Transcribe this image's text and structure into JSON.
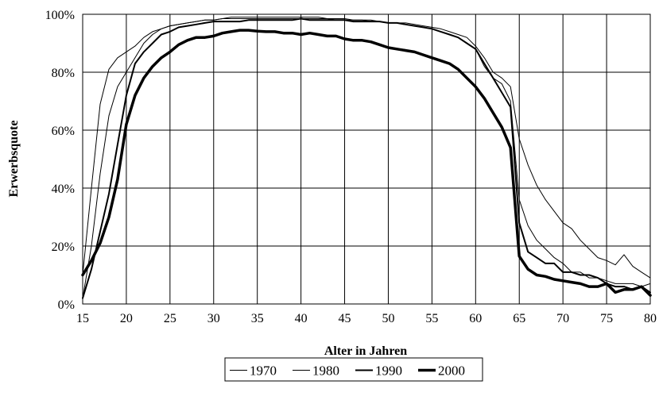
{
  "chart_data": {
    "type": "line",
    "title": "",
    "xlabel": "Alter in Jahren",
    "ylabel": "Erwerbsquote",
    "xlim": [
      15,
      80
    ],
    "ylim": [
      0,
      100
    ],
    "x_ticks": [
      "15",
      "20",
      "25",
      "30",
      "35",
      "40",
      "45",
      "50",
      "55",
      "60",
      "65",
      "70",
      "75",
      "80"
    ],
    "y_ticks": [
      "0%",
      "20%",
      "40%",
      "60%",
      "80%",
      "100%"
    ],
    "grid": true,
    "legend_position": "bottom-center",
    "x": [
      15,
      16,
      17,
      18,
      19,
      20,
      21,
      22,
      23,
      24,
      25,
      26,
      27,
      28,
      29,
      30,
      31,
      32,
      33,
      34,
      35,
      36,
      37,
      38,
      39,
      40,
      41,
      42,
      43,
      44,
      45,
      46,
      47,
      48,
      49,
      50,
      51,
      52,
      53,
      54,
      55,
      56,
      57,
      58,
      59,
      60,
      61,
      62,
      63,
      64,
      65,
      66,
      67,
      68,
      69,
      70,
      71,
      72,
      73,
      74,
      75,
      76,
      77,
      78,
      79,
      80
    ],
    "series": [
      {
        "name": "1970",
        "line_width": 1,
        "values": [
          10,
          40,
          69,
          81,
          85,
          87,
          89,
          92,
          94,
          95,
          96,
          96.5,
          97,
          97.5,
          98,
          98,
          98.5,
          98.5,
          98.5,
          98.5,
          98.5,
          98.5,
          98.5,
          98.5,
          98.5,
          98.5,
          98.5,
          98.5,
          98.5,
          98,
          98,
          98,
          98,
          97.5,
          97.5,
          97,
          97,
          97,
          96.5,
          96,
          95.5,
          95,
          94,
          93,
          92,
          89,
          85,
          80,
          78,
          75,
          57,
          48,
          41,
          36,
          32,
          28,
          26,
          22,
          19,
          16,
          15,
          13.5,
          17,
          13,
          11,
          9
        ]
      },
      {
        "name": "1980",
        "line_width": 1,
        "values": [
          2,
          20,
          45,
          65,
          75,
          80,
          85,
          90,
          93,
          95,
          96,
          96.5,
          97,
          97.5,
          98,
          98,
          98.5,
          99,
          99,
          99,
          99,
          99,
          99,
          99,
          99,
          99,
          99,
          99,
          98.5,
          98.5,
          98.5,
          98,
          98,
          98,
          97.5,
          97,
          97,
          96.5,
          96,
          95.5,
          95,
          94,
          93,
          92,
          90,
          88,
          82,
          78,
          76,
          70,
          36,
          27,
          22,
          19,
          16,
          14,
          11,
          11,
          9,
          9,
          8,
          7,
          7,
          7,
          6,
          7
        ]
      },
      {
        "name": "1990",
        "line_width": 2,
        "values": [
          2,
          12,
          25,
          38,
          55,
          72,
          83,
          87,
          90,
          93,
          94,
          95.5,
          96,
          96.5,
          97,
          97.5,
          97.5,
          97.5,
          97.5,
          98,
          98,
          98,
          98,
          98,
          98,
          98.5,
          98,
          98,
          98,
          98,
          98,
          97.5,
          97.5,
          97.5,
          97.5,
          97,
          97,
          96.5,
          96,
          95.5,
          95,
          94,
          93,
          92,
          90,
          88,
          83,
          78,
          73,
          68,
          28,
          18,
          16,
          14,
          14,
          11,
          11,
          10,
          10,
          9,
          7,
          6,
          6,
          5,
          6,
          4
        ]
      },
      {
        "name": "2000",
        "line_width": 3.5,
        "values": [
          10,
          15,
          21,
          30,
          43,
          62,
          72,
          78,
          82,
          85,
          87,
          89.5,
          91,
          92,
          92,
          92.5,
          93.5,
          94,
          94.5,
          94.5,
          94.2,
          94,
          94,
          93.5,
          93.5,
          93,
          93.5,
          93,
          92.5,
          92.5,
          91.5,
          91,
          91,
          90.5,
          89.5,
          88.5,
          88,
          87.5,
          87,
          86,
          85,
          84,
          83,
          81,
          78,
          75,
          71,
          66,
          61,
          54,
          16.5,
          12,
          10,
          9.5,
          8.5,
          8,
          7.5,
          7,
          6,
          6,
          7,
          4,
          5,
          5,
          6,
          3
        ]
      }
    ]
  }
}
